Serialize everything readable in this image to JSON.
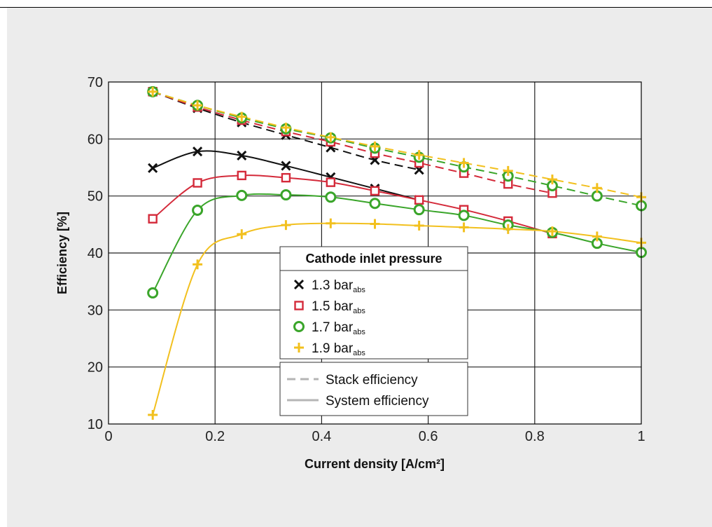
{
  "chart_data": {
    "type": "line",
    "xlabel": "Current density [A/cm²]",
    "ylabel": "Efficiency [%]",
    "xlim": [
      0,
      1
    ],
    "ylim": [
      10,
      70
    ],
    "x_ticks": [
      "0",
      "0.2",
      "0.4",
      "0.6",
      "0.8",
      "1"
    ],
    "y_ticks": [
      "10",
      "20",
      "30",
      "40",
      "50",
      "60",
      "70"
    ],
    "grid": true,
    "legend": {
      "title": "Cathode inlet pressure",
      "placement": "center",
      "entries": [
        {
          "value": "1.3 bar",
          "sub": "abs",
          "color": "#111111",
          "marker": "x-mark"
        },
        {
          "value": "1.5 bar",
          "sub": "abs",
          "color": "#d42a3a",
          "marker": "square"
        },
        {
          "value": "1.7 bar",
          "sub": "abs",
          "color": "#3aa52a",
          "marker": "circle"
        },
        {
          "value": "1.9 bar",
          "sub": "abs",
          "color": "#f2c01e",
          "marker": "plus"
        }
      ],
      "line_styles": [
        {
          "label": "Stack efficiency",
          "style": "dashed"
        },
        {
          "label": "System efficiency",
          "style": "solid"
        }
      ]
    },
    "series": [
      {
        "name": "1.3 bar abs",
        "kind": "stack",
        "color": "#111111",
        "marker": "x",
        "x": [
          0.083,
          0.167,
          0.25,
          0.333,
          0.417,
          0.5,
          0.583
        ],
        "y": [
          68.3,
          65.4,
          62.9,
          60.7,
          58.5,
          56.3,
          54.6
        ]
      },
      {
        "name": "1.3 bar abs",
        "kind": "system",
        "color": "#111111",
        "marker": "x",
        "x": [
          0.083,
          0.167,
          0.25,
          0.333,
          0.417,
          0.5,
          0.583
        ],
        "y": [
          54.9,
          57.8,
          57.1,
          55.3,
          53.3,
          51.3,
          49.3
        ]
      },
      {
        "name": "1.5 bar abs",
        "kind": "stack",
        "color": "#d42a3a",
        "marker": "square",
        "x": [
          0.083,
          0.167,
          0.25,
          0.333,
          0.417,
          0.5,
          0.583,
          0.667,
          0.75,
          0.833
        ],
        "y": [
          68.3,
          65.6,
          63.3,
          61.3,
          59.5,
          57.5,
          55.8,
          54.0,
          52.1,
          50.5
        ]
      },
      {
        "name": "1.5 bar abs",
        "kind": "system",
        "color": "#d42a3a",
        "marker": "square",
        "x": [
          0.083,
          0.167,
          0.25,
          0.333,
          0.417,
          0.5,
          0.583,
          0.667,
          0.75,
          0.833
        ],
        "y": [
          46.0,
          52.3,
          53.6,
          53.2,
          52.4,
          50.9,
          49.3,
          47.6,
          45.6,
          43.4
        ]
      },
      {
        "name": "1.7 bar abs",
        "kind": "stack",
        "color": "#3aa52a",
        "marker": "circle",
        "x": [
          0.083,
          0.167,
          0.25,
          0.333,
          0.417,
          0.5,
          0.583,
          0.667,
          0.75,
          0.833,
          0.917,
          1.0
        ],
        "y": [
          68.3,
          65.9,
          63.7,
          61.8,
          60.2,
          58.4,
          56.8,
          55.1,
          53.5,
          51.8,
          50.0,
          48.3
        ]
      },
      {
        "name": "1.7 bar abs",
        "kind": "system",
        "color": "#3aa52a",
        "marker": "circle",
        "x": [
          0.083,
          0.167,
          0.25,
          0.333,
          0.417,
          0.5,
          0.583,
          0.667,
          0.75,
          0.833,
          0.917,
          1.0
        ],
        "y": [
          33.0,
          47.5,
          50.1,
          50.2,
          49.8,
          48.7,
          47.6,
          46.6,
          44.9,
          43.6,
          41.7,
          40.1
        ]
      },
      {
        "name": "1.9 bar abs",
        "kind": "stack",
        "color": "#f2c01e",
        "marker": "plus",
        "x": [
          0.083,
          0.167,
          0.25,
          0.333,
          0.417,
          0.5,
          0.583,
          0.667,
          0.75,
          0.833,
          0.917,
          1.0
        ],
        "y": [
          68.3,
          65.9,
          63.9,
          62.0,
          60.3,
          58.7,
          57.2,
          55.8,
          54.4,
          52.9,
          51.4,
          49.8
        ]
      },
      {
        "name": "1.9 bar abs",
        "kind": "system",
        "color": "#f2c01e",
        "marker": "plus",
        "x": [
          0.083,
          0.167,
          0.25,
          0.333,
          0.417,
          0.5,
          0.583,
          0.667,
          0.75,
          0.833,
          0.917,
          1.0
        ],
        "y": [
          11.6,
          38.0,
          43.3,
          44.9,
          45.2,
          45.1,
          44.8,
          44.5,
          44.2,
          43.8,
          42.9,
          41.8
        ]
      }
    ]
  }
}
